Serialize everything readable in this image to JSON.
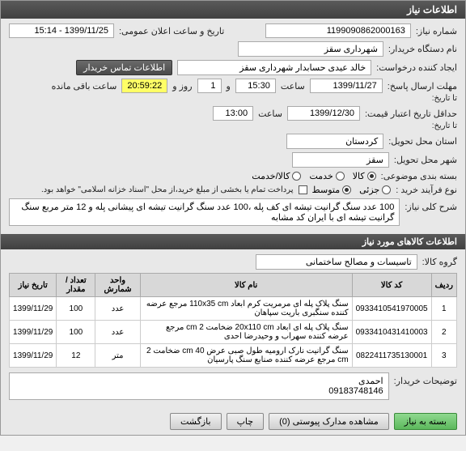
{
  "header": {
    "title": "اطلاعات نیاز"
  },
  "fields": {
    "need_number_label": "شماره نیاز:",
    "need_number": "1199090862000163",
    "public_time_label": "تاریخ و ساعت اعلان عمومی:",
    "public_time": "1399/11/25 - 15:14",
    "buyer_org_label": "نام دستگاه خریدار:",
    "buyer_org": "شهرداری سقز",
    "creator_label": "ایجاد کننده درخواست:",
    "creator": "خالد عیدی حسابدار شهرداری سقز",
    "contact_btn": "اطلاعات تماس خریدار",
    "deadline_label": "مهلت ارسال پاسخ:",
    "deadline_until_label": "تا تاریخ:",
    "deadline_date": "1399/11/27",
    "time_label": "ساعت",
    "deadline_time": "15:30",
    "and_label": "و",
    "day_label": "روز و",
    "days_remaining": "1",
    "countdown": "20:59:22",
    "remaining_label": "ساعت باقی مانده",
    "min_validity_label": "حداقل تاریخ اعتبار قیمت:",
    "min_validity_until_label": "تا تاریخ:",
    "validity_date": "1399/12/30",
    "validity_time": "13:00",
    "delivery_province_label": "استان محل تحویل:",
    "delivery_province": "کردستان",
    "delivery_city_label": "شهر محل تحویل:",
    "delivery_city": "سقز",
    "package_label": "بسته بندی موضوعی:",
    "radio_goods": "کالا",
    "radio_service": "خدمت",
    "radio_both": "کالا/خدمت",
    "process_label": "نوع فرآیند خرید :",
    "radio_small": "جزئی",
    "radio_medium": "متوسط",
    "process_note": "پرداخت تمام یا بخشی از مبلغ خرید،از محل \"اسناد خزانه اسلامی\" خواهد بود.",
    "subject_label": "شرح کلی نیاز:",
    "subject_text": "100 عدد سنگ گرانیت تیشه ای کف پله ،100 عدد سنگ گرانیت تیشه ای پیشانی پله و 12 متر مربع سنگ گرانیت تیشه ای با ایران کد مشابه"
  },
  "items_header": "اطلاعات کالاهای مورد نیاز",
  "items": {
    "group_label": "گروه کالا:",
    "group_value": "تاسیسات و مصالح ساختمانی",
    "columns": {
      "row": "ردیف",
      "code": "کد کالا",
      "name": "نام کالا",
      "unit": "واحد شمارش",
      "qty": "تعداد / مقدار",
      "date": "تاریخ نیاز"
    },
    "rows": [
      {
        "idx": "1",
        "code": "0933410541970005",
        "name": "سنگ پلاک پله ای مرمریت کرم ابعاد 110x35 cm مرجع عرضه کننده سنگبری باریت سپاهان",
        "unit": "عدد",
        "qty": "100",
        "date": "1399/11/29"
      },
      {
        "idx": "2",
        "code": "0933410431410003",
        "name": "سنگ پلاک پله ای ابعاد 20x110 cm ضخامت 2 cm مرجع عرضه کننده سهراب و وحیدرضا احدی",
        "unit": "عدد",
        "qty": "100",
        "date": "1399/11/29"
      },
      {
        "idx": "3",
        "code": "0822411735130001",
        "name": "سنگ گرانیت نارک ارومیه طول صبی عرض 40 cm ضخامت 2 cm مرجع عرضه کننده صنایع سنگ پارسیان",
        "unit": "متر",
        "qty": "12",
        "date": "1399/11/29"
      }
    ]
  },
  "buyer_notes": {
    "label": "توضیحات خریدار:",
    "text": "احمدی\n09183748146"
  },
  "footer": {
    "back": "بسته به نیاز",
    "attachments_btn": "مشاهده مدارک پیوستی",
    "attachments_count": "(0)",
    "print": "چاپ",
    "return": "بازگشت"
  },
  "colors": {
    "header_bg": "#4a4a4a",
    "yellow": "#ffff66",
    "green": "#5cb85c"
  }
}
